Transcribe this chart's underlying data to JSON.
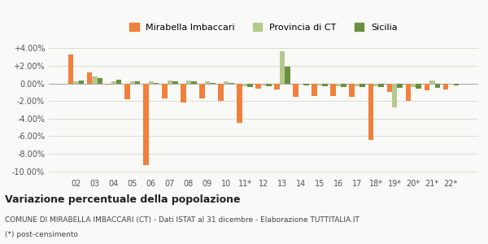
{
  "years": [
    "02",
    "03",
    "04",
    "05",
    "06",
    "07",
    "08",
    "09",
    "10",
    "11*",
    "12",
    "13",
    "14",
    "15",
    "16",
    "17",
    "18*",
    "19*",
    "20*",
    "21*",
    "22*"
  ],
  "mirabella": [
    3.3,
    1.3,
    -0.1,
    -1.8,
    -9.3,
    -1.7,
    -2.2,
    -1.7,
    -2.0,
    -4.5,
    -0.6,
    -0.7,
    -1.5,
    -1.4,
    -1.4,
    -1.5,
    -6.4,
    -1.0,
    -2.0,
    -0.8,
    -0.7
  ],
  "provincia_ct": [
    0.2,
    0.8,
    0.2,
    0.2,
    0.2,
    0.3,
    0.3,
    0.2,
    0.2,
    -0.3,
    -0.2,
    3.7,
    -0.1,
    -0.2,
    -0.3,
    -0.3,
    -0.3,
    -2.7,
    -0.4,
    0.3,
    -0.1
  ],
  "sicilia": [
    0.3,
    0.6,
    0.4,
    0.2,
    0.1,
    0.2,
    0.2,
    0.1,
    0.1,
    -0.4,
    -0.3,
    1.9,
    -0.2,
    -0.3,
    -0.4,
    -0.4,
    -0.4,
    -0.5,
    -0.6,
    -0.5,
    -0.2
  ],
  "color_mirabella": "#f0803c",
  "color_provincia": "#b5c98e",
  "color_sicilia": "#6b8f3e",
  "title_bold": "Variazione percentuale della popolazione",
  "subtitle": "COMUNE DI MIRABELLA IMBACCARI (CT) - Dati ISTAT al 31 dicembre - Elaborazione TUTTITALIA.IT",
  "footnote": "(*) post-censimento",
  "ylim": [
    -10.5,
    4.5
  ],
  "yticks": [
    -10.0,
    -8.0,
    -6.0,
    -4.0,
    -2.0,
    0.0,
    2.0,
    4.0
  ],
  "ytick_labels": [
    "-10.00%",
    "-8.00%",
    "-6.00%",
    "-4.00%",
    "-2.00%",
    "0.00%",
    "+2.00%",
    "+4.00%"
  ],
  "background_color": "#f9f9f7",
  "grid_color": "#ddddcc",
  "legend_labels": [
    "Mirabella Imbaccari",
    "Provincia di CT",
    "Sicilia"
  ]
}
